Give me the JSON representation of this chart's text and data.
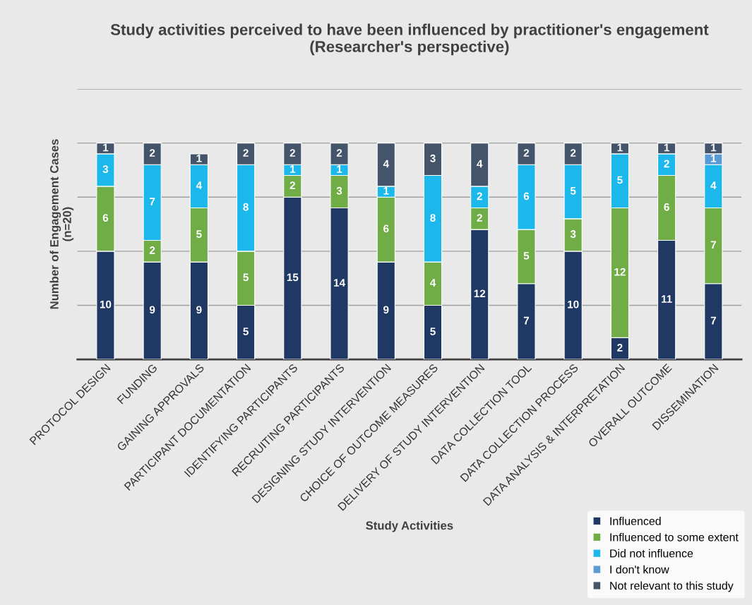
{
  "chart_data": {
    "type": "bar",
    "stacked": true,
    "title": "Study activities perceived to have been influenced by practitioner's engagement (Researcher's perspective)",
    "xlabel": "Study Activities",
    "ylabel": "Number of Engagement Cases\n(n=20)",
    "categories": [
      "PROTOCOL DESIGN",
      "FUNDING",
      "GAINING APPROVALS",
      "PARTICIPANT DOCUMENTATION",
      "IDENTIFYING PARTICIPANTS",
      "RECRUITING PARTICIPANTS",
      "DESIGNING STUDY INTERVENTION",
      "CHOICE OF OUTCOME MEASURES",
      "DELIVERY OF STUDY INTERVENTION",
      "DATA COLLECTION TOOL",
      "DATA COLLECTION PROCESS",
      "DATA ANALYSIS & INTERPRETATION",
      "OVERALL OUTCOME",
      "DISSEMINATION"
    ],
    "series": [
      {
        "name": "Influenced",
        "color": "#203864",
        "values": [
          10,
          9,
          9,
          5,
          15,
          14,
          9,
          5,
          12,
          7,
          10,
          2,
          11,
          7
        ]
      },
      {
        "name": "Influenced to some extent",
        "color": "#70ad47",
        "values": [
          6,
          2,
          5,
          5,
          2,
          3,
          6,
          4,
          2,
          5,
          3,
          12,
          6,
          7
        ]
      },
      {
        "name": "Did not influence",
        "color": "#1cb8ec",
        "values": [
          3,
          7,
          4,
          8,
          1,
          1,
          1,
          8,
          2,
          6,
          5,
          5,
          2,
          4
        ]
      },
      {
        "name": "I don't know",
        "color": "#5b9bd5",
        "values": [
          null,
          null,
          null,
          null,
          null,
          null,
          null,
          null,
          null,
          null,
          null,
          null,
          null,
          1
        ]
      },
      {
        "name": "Not relevant to this study",
        "color": "#44546a",
        "values": [
          1,
          2,
          1,
          2,
          2,
          2,
          4,
          3,
          4,
          2,
          2,
          1,
          1,
          1
        ]
      }
    ],
    "ylim": [
      0,
      25
    ],
    "yticks": [
      {
        "value": 0,
        "label": null
      },
      {
        "value": 5,
        "label": null
      },
      {
        "value": 10,
        "label": null
      },
      {
        "value": 15,
        "label": null
      },
      {
        "value": 20,
        "label": null
      },
      {
        "value": 25,
        "label": null
      }
    ],
    "tick_labels": "x",
    "grid": "y",
    "data_labels": true,
    "legend": "bottom right"
  }
}
